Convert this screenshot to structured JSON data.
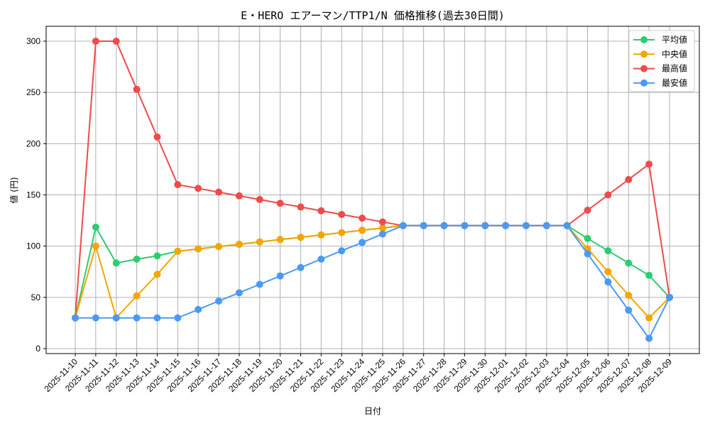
{
  "chart_data": {
    "type": "line",
    "title": "E・HERO エアーマン/TTP1/N 価格推移(過去30日間)",
    "xlabel": "日付",
    "ylabel": "値 (円)",
    "ylim": [
      -5,
      315
    ],
    "yticks": [
      0,
      50,
      100,
      150,
      200,
      250,
      300
    ],
    "grid": true,
    "legend_position": "upper right",
    "categories": [
      "2025-11-10",
      "2025-11-11",
      "2025-11-12",
      "2025-11-13",
      "2025-11-14",
      "2025-11-15",
      "2025-11-16",
      "2025-11-17",
      "2025-11-18",
      "2025-11-19",
      "2025-11-20",
      "2025-11-21",
      "2025-11-22",
      "2025-11-23",
      "2025-11-24",
      "2025-11-25",
      "2025-11-26",
      "2025-11-27",
      "2025-11-28",
      "2025-11-29",
      "2025-11-30",
      "2025-12-01",
      "2025-12-02",
      "2025-12-03",
      "2025-12-04",
      "2025-12-05",
      "2025-12-06",
      "2025-12-07",
      "2025-12-08",
      "2025-12-09"
    ],
    "series": [
      {
        "name": "平均値",
        "color": "#2ecc71",
        "values": [
          30,
          118.5,
          83.5,
          87.3,
          90.5,
          95,
          97.3,
          99.6,
          101.8,
          104.1,
          106.4,
          108.6,
          110.9,
          113.2,
          115.5,
          117.7,
          120,
          120,
          120,
          120,
          120,
          120,
          120,
          120,
          120,
          107.5,
          95.5,
          83.5,
          71.5,
          50
        ]
      },
      {
        "name": "中央値",
        "color": "#f5a500",
        "values": [
          30,
          100,
          30,
          51.5,
          72.5,
          95,
          97.3,
          99.6,
          101.8,
          104.1,
          106.4,
          108.6,
          110.9,
          113.2,
          115.5,
          117.7,
          120,
          120,
          120,
          120,
          120,
          120,
          120,
          120,
          120,
          97.5,
          75,
          52,
          30,
          50
        ]
      },
      {
        "name": "最高値",
        "color": "#f04a4a",
        "values": [
          30,
          300,
          300,
          253,
          206.5,
          160,
          156.4,
          152.7,
          149.1,
          145.5,
          141.8,
          138.2,
          134.5,
          130.9,
          127.3,
          123.6,
          120,
          120,
          120,
          120,
          120,
          120,
          120,
          120,
          120,
          135,
          150,
          165,
          180,
          50
        ]
      },
      {
        "name": "最安値",
        "color": "#4a9af5",
        "values": [
          30,
          30,
          30,
          30,
          30,
          30,
          38.2,
          46.4,
          54.5,
          62.7,
          70.9,
          79.1,
          87.3,
          95.5,
          103.6,
          111.8,
          120,
          120,
          120,
          120,
          120,
          120,
          120,
          120,
          120,
          92.5,
          65,
          37.5,
          10,
          50
        ]
      }
    ]
  },
  "colors": {
    "grid": "#b0b0b0",
    "axis": "#000000",
    "legend_border": "#cccccc"
  }
}
